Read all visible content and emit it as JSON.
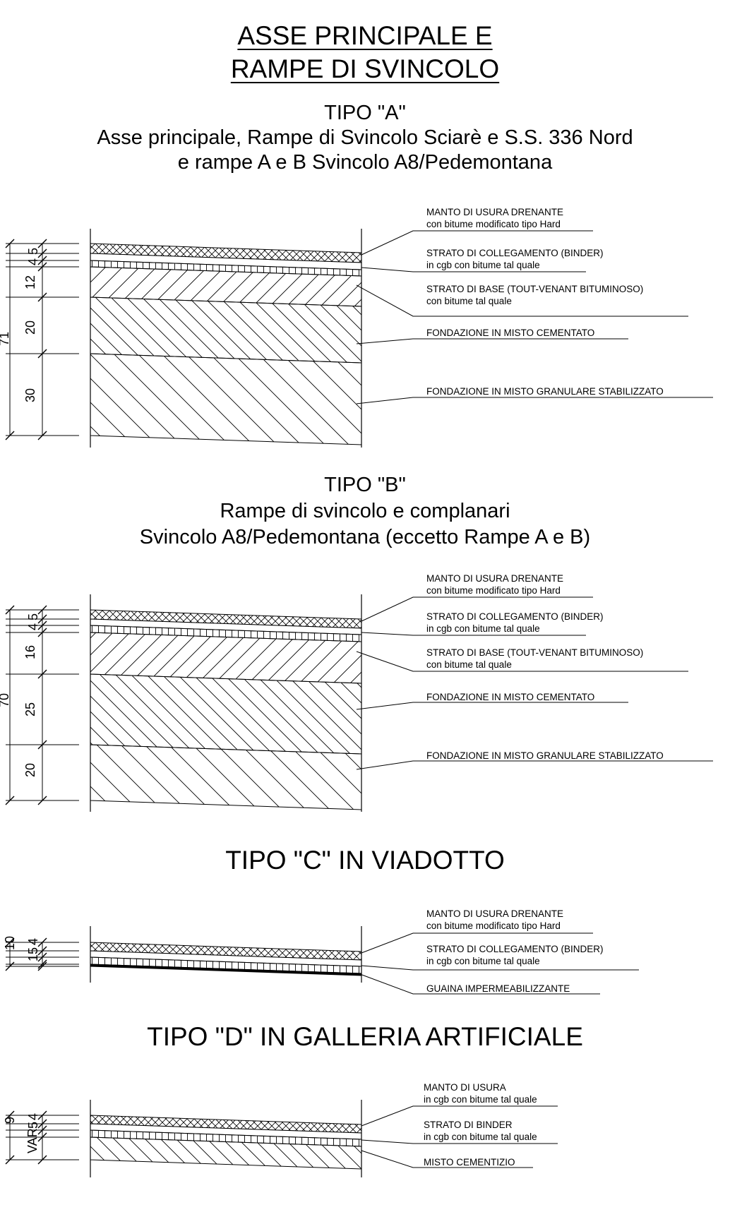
{
  "header": {
    "line1": "ASSE PRINCIPALE E",
    "line2": "RAMPE DI SVINCOLO"
  },
  "sections": [
    {
      "title": "TIPO \"A\"",
      "subtitle1": "Asse principale, Rampe di Svincolo Sciarè e S.S. 336 Nord",
      "subtitle2": "e rampe A e B Svincolo A8/Pedemontana",
      "total": "71",
      "dims": [
        "5",
        "4",
        "12",
        "20",
        "30"
      ],
      "labels": [
        {
          "l1": "MANTO DI USURA DRENANTE",
          "l2": "con bitume modificato tipo Hard"
        },
        {
          "l1": "STRATO DI COLLEGAMENTO (BINDER)",
          "l2": "in cgb con bitume tal quale"
        },
        {
          "l1": "STRATO DI BASE (TOUT-VENANT BITUMINOSO)",
          "l2": "con bitume tal quale"
        },
        {
          "l1": "FONDAZIONE IN MISTO CEMENTATO"
        },
        {
          "l1": "FONDAZIONE IN MISTO GRANULARE STABILIZZATO"
        }
      ]
    },
    {
      "title": "TIPO \"B\"",
      "subtitle1": "Rampe di svincolo e complanari",
      "subtitle2": "Svincolo A8/Pedemontana (eccetto Rampe A e B)",
      "total": "70",
      "dims": [
        "5",
        "4",
        "16",
        "25",
        "20"
      ],
      "labels": [
        {
          "l1": "MANTO DI USURA DRENANTE",
          "l2": "con bitume modificato tipo Hard"
        },
        {
          "l1": "STRATO DI COLLEGAMENTO (BINDER)",
          "l2": "in cgb con bitume tal quale"
        },
        {
          "l1": "STRATO DI BASE (TOUT-VENANT BITUMINOSO)",
          "l2": "con bitume tal quale"
        },
        {
          "l1": "FONDAZIONE IN MISTO CEMENTATO"
        },
        {
          "l1": "FONDAZIONE IN MISTO GRANULARE STABILIZZATO"
        }
      ]
    },
    {
      "title": "TIPO \"C\" IN VIADOTTO",
      "total": "10",
      "dims": [
        "1",
        "5",
        "4"
      ],
      "labels": [
        {
          "l1": "MANTO DI USURA DRENANTE",
          "l2": "con bitume modificato tipo Hard"
        },
        {
          "l1": "STRATO DI COLLEGAMENTO (BINDER)",
          "l2": "in cgb con bitume tal quale"
        },
        {
          "l1": "GUAINA IMPERMEABILIZZANTE"
        }
      ]
    },
    {
      "title": "TIPO \"D\" IN GALLERIA ARTIFICIALE",
      "total": "9",
      "dims": [
        "VAR",
        "5",
        "4"
      ],
      "labels": [
        {
          "l1": "MANTO DI USURA",
          "l2": "in cgb con bitume tal quale"
        },
        {
          "l1": "STRATO DI BINDER",
          "l2": "in cgb con bitume tal quale"
        },
        {
          "l1": "MISTO CEMENTIZIO"
        }
      ]
    }
  ]
}
